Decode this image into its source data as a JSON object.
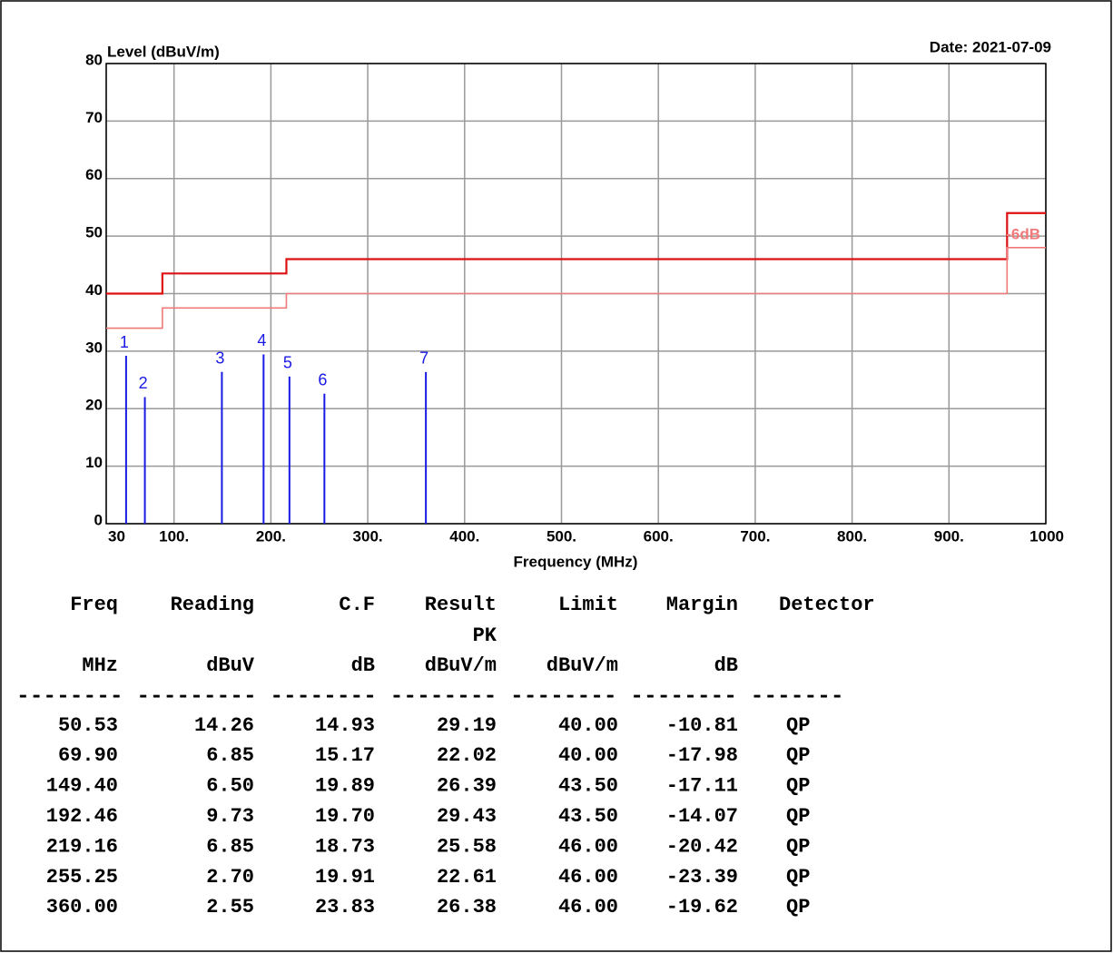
{
  "chart_data": {
    "type": "line",
    "ylabel": "Level (dBuV/m)",
    "xlabel": "Frequency (MHz)",
    "date": "Date: 2021-07-09",
    "xlim": [
      30,
      1000
    ],
    "ylim": [
      0,
      80
    ],
    "xticks": [
      30,
      {
        "value": 100,
        "label": "100."
      },
      {
        "value": 200,
        "label": "200."
      },
      {
        "value": 300,
        "label": "300."
      },
      {
        "value": 400,
        "label": "400."
      },
      {
        "value": 500,
        "label": "500."
      },
      {
        "value": 600,
        "label": "600."
      },
      {
        "value": 700,
        "label": "700."
      },
      {
        "value": 800,
        "label": "800."
      },
      {
        "value": 900,
        "label": "900."
      },
      1000
    ],
    "yticks": [
      0,
      10,
      20,
      30,
      40,
      50,
      60,
      70,
      80
    ],
    "grid": true,
    "series": [
      {
        "color": "#dd1111",
        "x": [
          30,
          88,
          88,
          216,
          216,
          960,
          960,
          1000
        ],
        "values": [
          40,
          40,
          43.5,
          43.5,
          46,
          46,
          54,
          54
        ]
      },
      {
        "color": "#f07a7a",
        "x": [
          30,
          88,
          88,
          216,
          216,
          960,
          960,
          1000
        ],
        "values": [
          34,
          34,
          37.5,
          37.5,
          40,
          40,
          48,
          48
        ]
      }
    ],
    "annotation": {
      "text": "-6dB",
      "color": "#f07a7a"
    },
    "markers": {
      "color": "#1a1ae6",
      "labels": [
        "1",
        "2",
        "3",
        "4",
        "5",
        "6",
        "7"
      ],
      "x": [
        50.53,
        69.9,
        149.4,
        192.46,
        219.16,
        255.25,
        360.0
      ],
      "values": [
        29.19,
        22.02,
        26.39,
        29.43,
        25.58,
        22.61,
        26.38
      ]
    }
  },
  "table": {
    "columns": [
      {
        "name": "Freq",
        "unit": "MHz"
      },
      {
        "name": "Reading",
        "unit": "dBuV"
      },
      {
        "name": "C.F",
        "unit": "dB"
      },
      {
        "name": "Result",
        "sub": "PK",
        "unit": "dBuV/m"
      },
      {
        "name": "Limit",
        "unit": "dBuV/m"
      },
      {
        "name": "Margin",
        "unit": "dB"
      },
      {
        "name": "Detector"
      }
    ],
    "rule": "-------- --------- -------- -------- -------- -------- -------",
    "rows": [
      [
        "50.53",
        "14.26",
        "14.93",
        "29.19",
        "40.00",
        "-10.81",
        "QP"
      ],
      [
        "69.90",
        "6.85",
        "15.17",
        "22.02",
        "40.00",
        "-17.98",
        "QP"
      ],
      [
        "149.40",
        "6.50",
        "19.89",
        "26.39",
        "43.50",
        "-17.11",
        "QP"
      ],
      [
        "192.46",
        "9.73",
        "19.70",
        "29.43",
        "43.50",
        "-14.07",
        "QP"
      ],
      [
        "219.16",
        "6.85",
        "18.73",
        "25.58",
        "46.00",
        "-20.42",
        "QP"
      ],
      [
        "255.25",
        "2.70",
        "19.91",
        "22.61",
        "46.00",
        "-23.39",
        "QP"
      ],
      [
        "360.00",
        "2.55",
        "23.83",
        "26.38",
        "46.00",
        "-19.62",
        "QP"
      ]
    ]
  }
}
